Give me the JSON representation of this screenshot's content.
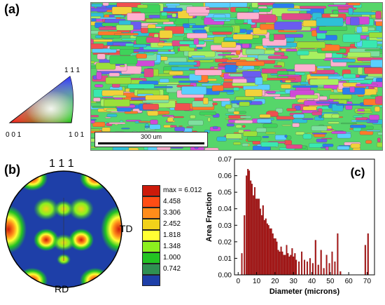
{
  "panel_a": {
    "label": "(a)",
    "ipf_labels": {
      "top": "1 1 1",
      "left": "0 0 1",
      "right": "1 0 1"
    },
    "scale_bar": "300 um"
  },
  "panel_b": {
    "label": "(b)",
    "top_label": "1 1 1",
    "right_label": "TD",
    "bottom_label": "RD",
    "colorbar": [
      {
        "label": "max = 6.012",
        "color": "#cc1a0a"
      },
      {
        "label": "4.458",
        "color": "#ff4d14"
      },
      {
        "label": "3.306",
        "color": "#ff8c1a"
      },
      {
        "label": "2.452",
        "color": "#f2d21a"
      },
      {
        "label": "1.818",
        "color": "#ffff33"
      },
      {
        "label": "1.348",
        "color": "#8cf01e"
      },
      {
        "label": "1.000",
        "color": "#22c322"
      },
      {
        "label": "0.742",
        "color": "#2f8f52"
      },
      {
        "label": "",
        "color": "#1e3fa8"
      }
    ]
  },
  "panel_c": {
    "label": "(c)"
  },
  "chart_data": {
    "type": "bar",
    "xlabel": "Diameter (microns)",
    "ylabel": "Area Fraction",
    "xlim": [
      -2,
      74
    ],
    "ylim": [
      0,
      0.07
    ],
    "xticks": [
      0,
      10,
      20,
      30,
      40,
      50,
      60,
      70
    ],
    "yticks": [
      0.0,
      0.01,
      0.02,
      0.03,
      0.04,
      0.05,
      0.06,
      0.07
    ],
    "bar_color": "#b01818",
    "x": [
      2,
      3.4,
      4.5,
      5.3,
      6,
      6.8,
      7.5,
      8.3,
      9,
      9.8,
      10.5,
      11.3,
      12,
      12.8,
      13.5,
      14.3,
      15,
      15.8,
      16.5,
      17.3,
      18,
      18.8,
      19.5,
      20.3,
      21,
      21.8,
      22.5,
      23.3,
      24,
      24.8,
      25.5,
      26.3,
      27,
      27.8,
      28.5,
      29.3,
      30,
      30.8,
      31.5,
      33,
      34.5,
      36,
      37.5,
      39,
      40.5,
      42,
      43.5,
      45,
      46.5,
      48,
      49.5,
      51,
      52.5,
      54,
      55.5,
      69,
      70.5
    ],
    "values": [
      0.013,
      0.036,
      0.06,
      0.064,
      0.063,
      0.057,
      0.055,
      0.048,
      0.053,
      0.046,
      0.046,
      0.046,
      0.04,
      0.036,
      0.042,
      0.033,
      0.034,
      0.031,
      0.03,
      0.028,
      0.028,
      0.025,
      0.022,
      0.022,
      0.02,
      0.015,
      0.014,
      0.017,
      0.014,
      0.012,
      0.012,
      0.018,
      0.013,
      0.011,
      0.012,
      0.016,
      0.011,
      0.013,
      0.009,
      0.008,
      0.014,
      0.009,
      0.008,
      0.01,
      0.007,
      0.021,
      0.006,
      0.015,
      0.004,
      0.012,
      0.007,
      0.014,
      0.008,
      0.025,
      0.002,
      0.018,
      0.025
    ]
  }
}
